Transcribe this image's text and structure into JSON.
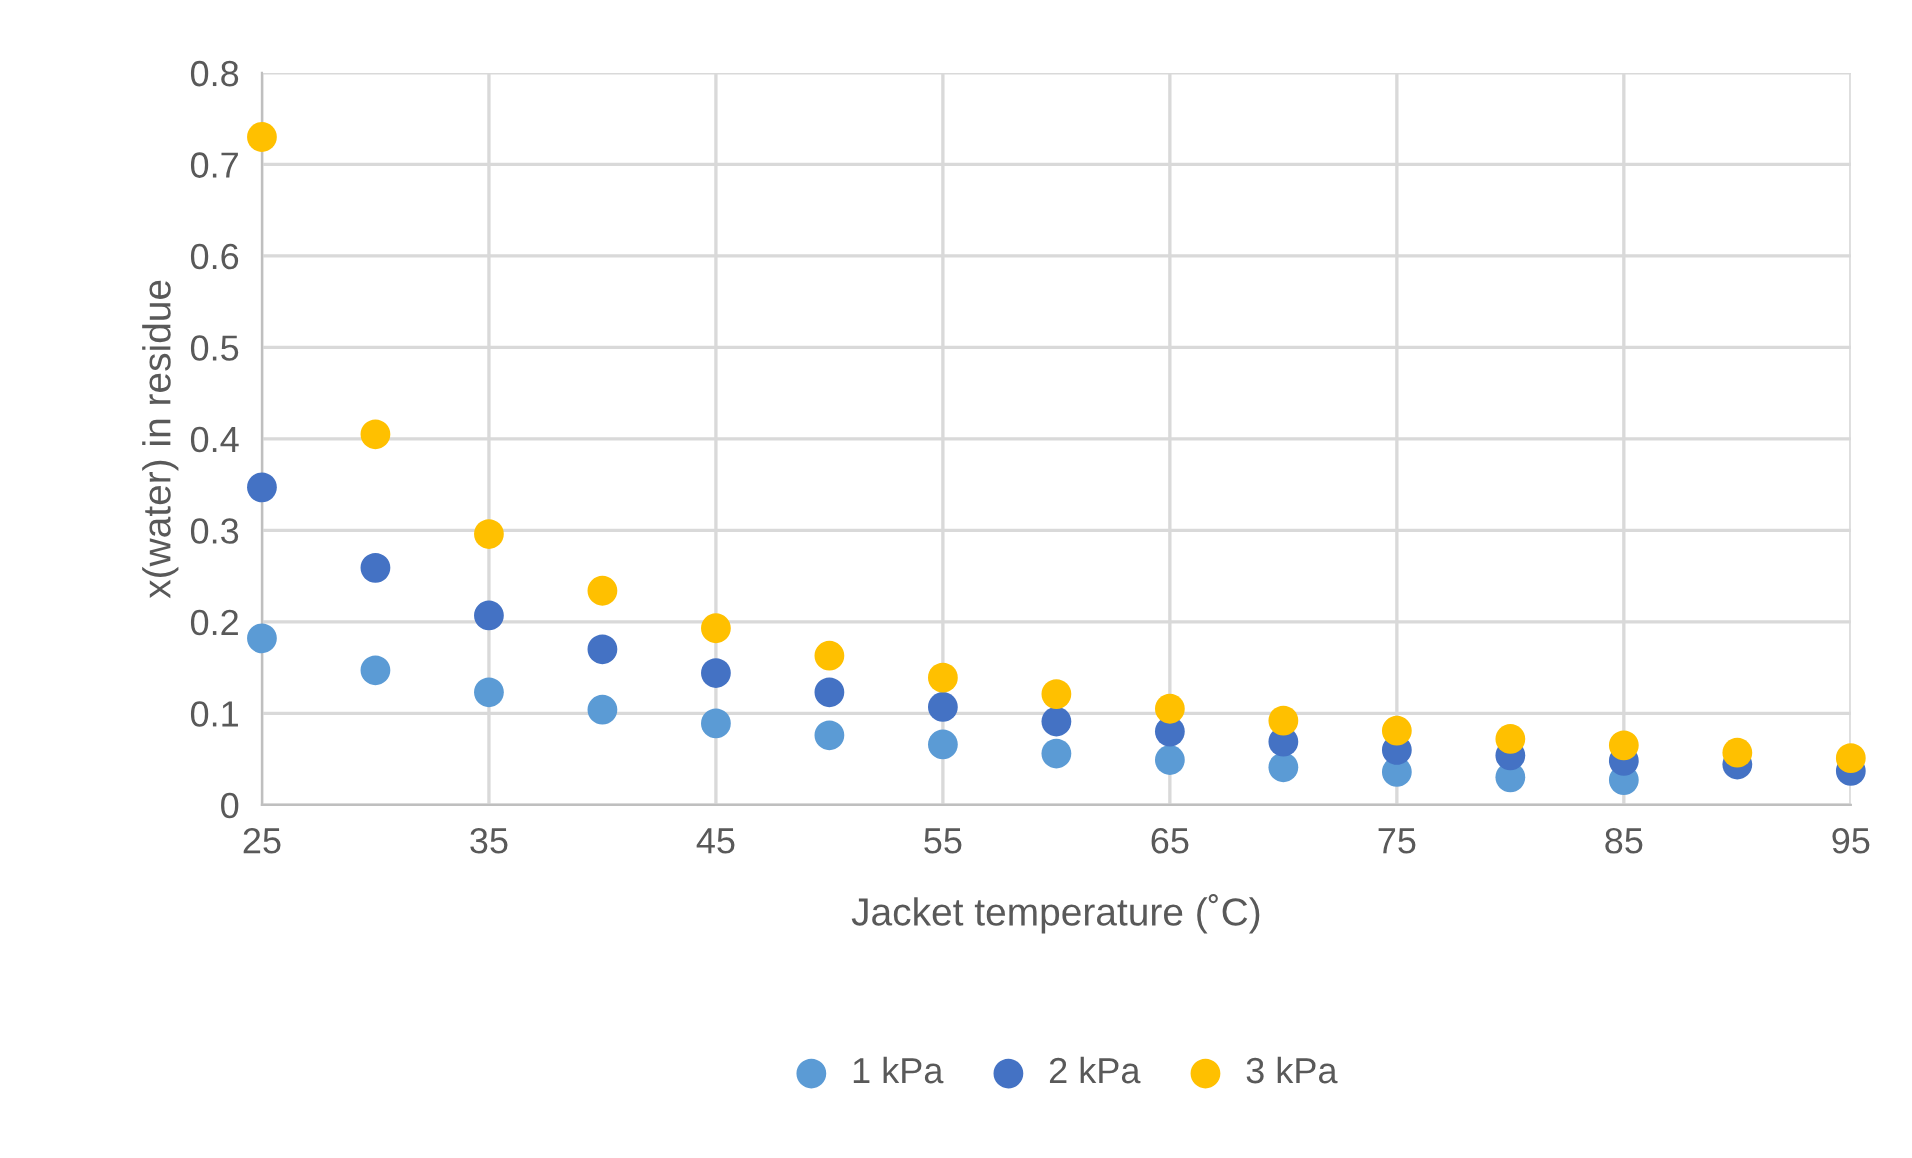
{
  "chart_data": {
    "type": "scatter",
    "xlabel": "Jacket temperature (˚C)",
    "ylabel": "x(water) in residue",
    "x": [
      25,
      30,
      35,
      40,
      45,
      50,
      55,
      60,
      65,
      70,
      75,
      80,
      85,
      90,
      95
    ],
    "series": [
      {
        "name": "1 kPa",
        "color": "#5b9bd5",
        "values": [
          0.182,
          0.147,
          0.123,
          0.104,
          0.089,
          0.076,
          0.066,
          0.056,
          0.049,
          0.041,
          0.036,
          0.03,
          0.027,
          null,
          null
        ]
      },
      {
        "name": "2 kPa",
        "color": "#4472c4",
        "values": [
          0.347,
          0.259,
          0.207,
          0.17,
          0.144,
          0.123,
          0.107,
          0.091,
          0.08,
          0.069,
          0.06,
          0.054,
          0.048,
          0.044,
          0.037
        ]
      },
      {
        "name": "3 kPa",
        "color": "#ffc000",
        "values": [
          0.73,
          0.405,
          0.296,
          0.234,
          0.193,
          0.163,
          0.139,
          0.121,
          0.105,
          0.092,
          0.081,
          0.072,
          0.065,
          0.057,
          0.051
        ]
      }
    ],
    "xlim": [
      25,
      95
    ],
    "xticks": [
      25,
      35,
      45,
      55,
      65,
      75,
      85,
      95
    ],
    "ylim": [
      0,
      0.8
    ],
    "yticks": [
      0,
      0.1,
      0.2,
      0.3,
      0.4,
      0.5,
      0.6,
      0.7,
      0.8
    ],
    "grid": true,
    "legend": "bottom",
    "marker": "circle"
  }
}
